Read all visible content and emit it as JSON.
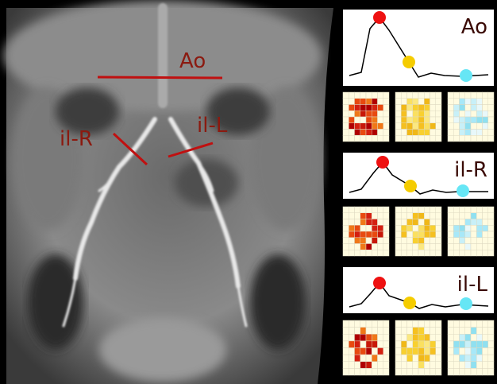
{
  "image_labels": [
    "Ao",
    "il-R",
    "il-L"
  ],
  "panels": [
    {
      "label": "Ao"
    },
    {
      "label": "il-R"
    },
    {
      "label": "il-L"
    }
  ]
}
